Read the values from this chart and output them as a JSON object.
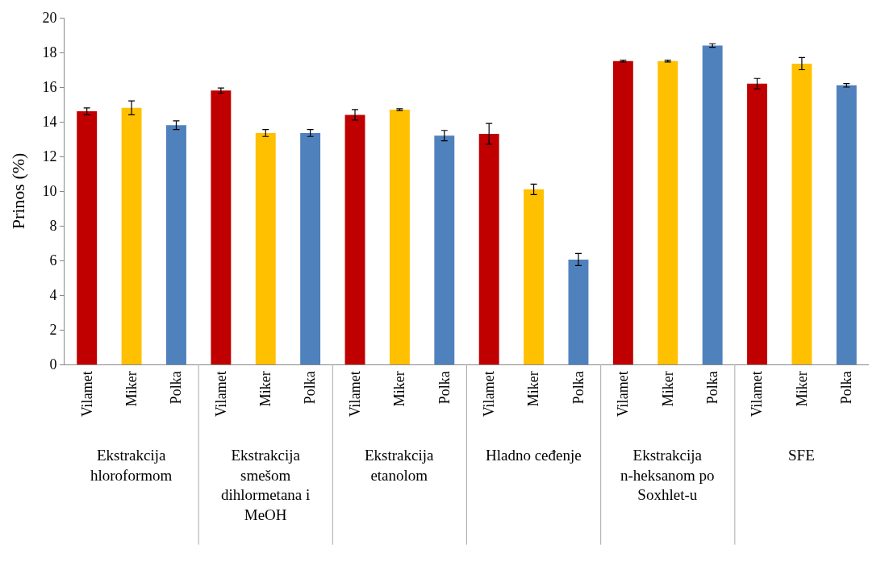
{
  "chart_data": {
    "type": "bar",
    "ylabel": "Prinos (%)",
    "categories": [
      "Vilamet",
      "Miker",
      "Polka",
      "Vilamet",
      "Miker",
      "Polka",
      "Vilamet",
      "Miker",
      "Polka",
      "Vilamet",
      "Miker",
      "Polka",
      "Vilamet",
      "Miker",
      "Polka",
      "Vilamet",
      "Miker",
      "Polka"
    ],
    "values": [
      14.6,
      14.8,
      13.8,
      15.8,
      13.35,
      13.35,
      14.4,
      14.7,
      13.2,
      13.3,
      10.1,
      6.05,
      17.5,
      17.5,
      18.4,
      16.2,
      17.35,
      16.1
    ],
    "errors": [
      0.2,
      0.4,
      0.25,
      0.15,
      0.2,
      0.2,
      0.3,
      0.05,
      0.3,
      0.6,
      0.3,
      0.35,
      0.05,
      0.05,
      0.1,
      0.3,
      0.35,
      0.1
    ],
    "colors": [
      "#c00000",
      "#ffc000",
      "#4f81bd",
      "#c00000",
      "#ffc000",
      "#4f81bd",
      "#c00000",
      "#ffc000",
      "#4f81bd",
      "#c00000",
      "#ffc000",
      "#4f81bd",
      "#c00000",
      "#ffc000",
      "#4f81bd",
      "#c00000",
      "#ffc000",
      "#4f81bd"
    ],
    "ylim": [
      0,
      20
    ],
    "yticks": [
      0,
      2,
      4,
      6,
      8,
      10,
      12,
      14,
      16,
      18,
      20
    ],
    "legend": false,
    "annotations": [
      "Ekstrakcija hloroformom",
      "Ekstrakcija smešom dihlormetana i MeOH",
      "Ekstrakcija etanolom",
      "Hladno ceđenje",
      "Ekstrakcija n-heksanom po Soxhlet-u",
      "SFE"
    ]
  }
}
